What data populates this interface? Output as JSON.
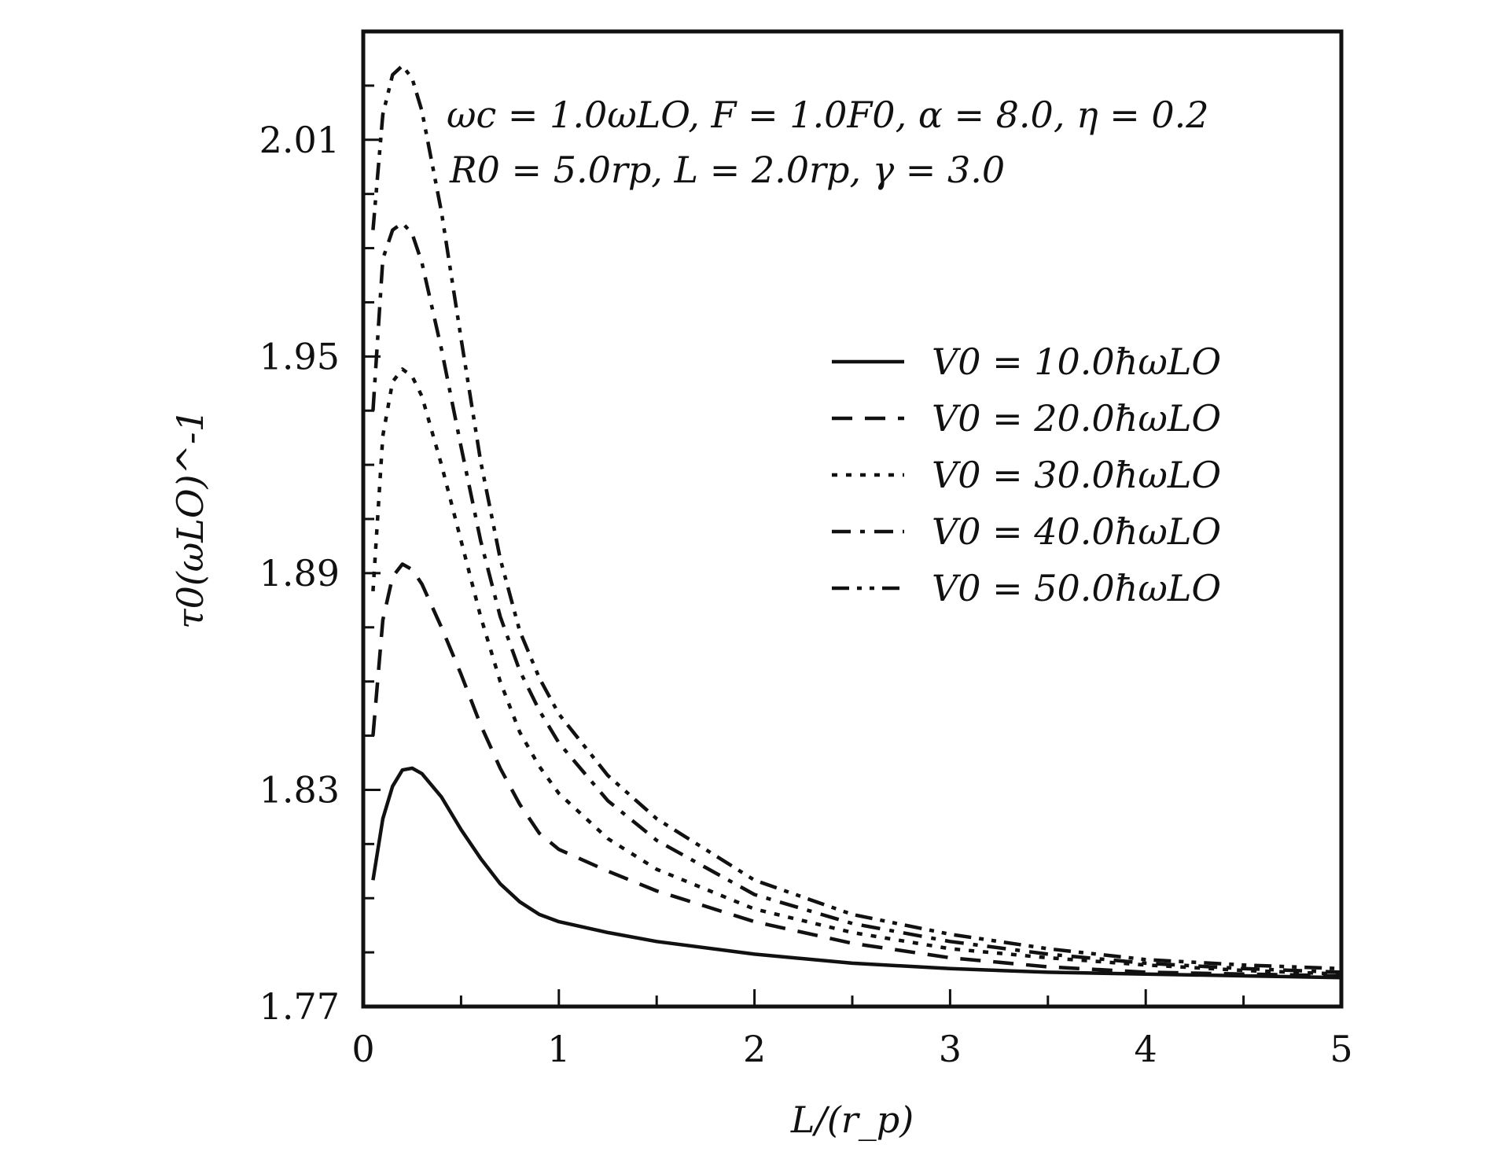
{
  "chart_data": {
    "type": "line",
    "xlabel": "L/(r_p)",
    "ylabel": "τ0(ωLO)^-1",
    "xlim": [
      0,
      5
    ],
    "ylim": [
      1.77,
      2.04
    ],
    "x_ticks": [
      0,
      1,
      2,
      3,
      4,
      5
    ],
    "x_tick_labels": [
      "0",
      "1",
      "2",
      "3",
      "4",
      "5"
    ],
    "y_ticks": [
      1.77,
      1.83,
      1.89,
      1.95,
      2.01
    ],
    "y_tick_labels": [
      "1.77",
      "1.83",
      "1.89",
      "1.95",
      "2.01"
    ],
    "annotations": [
      "ωc = 1.0ωLO,  F = 1.0F0,  α = 8.0,  η = 0.2",
      "R0 = 5.0rp,  L = 2.0rp,  γ = 3.0"
    ],
    "legend_position": "right",
    "grid": false,
    "series": [
      {
        "name": "V0 = 10.0ħωLO",
        "dash": "solid",
        "x": [
          0.05,
          0.1,
          0.15,
          0.2,
          0.25,
          0.3,
          0.4,
          0.5,
          0.6,
          0.7,
          0.8,
          0.9,
          1.0,
          1.25,
          1.5,
          2.0,
          2.5,
          3.0,
          3.5,
          4.0,
          4.5,
          5.0
        ],
        "y": [
          1.805,
          1.822,
          1.831,
          1.8355,
          1.836,
          1.8345,
          1.828,
          1.819,
          1.811,
          1.804,
          1.799,
          1.7955,
          1.7935,
          1.7905,
          1.788,
          1.7845,
          1.782,
          1.7805,
          1.7795,
          1.779,
          1.7785,
          1.778
        ]
      },
      {
        "name": "V0 = 20.0ħωLO",
        "dash": "dashed",
        "x": [
          0.05,
          0.1,
          0.15,
          0.2,
          0.25,
          0.3,
          0.4,
          0.5,
          0.6,
          0.7,
          0.8,
          0.9,
          1.0,
          1.25,
          1.5,
          2.0,
          2.5,
          3.0,
          3.5,
          4.0,
          4.5,
          5.0
        ],
        "y": [
          1.845,
          1.877,
          1.889,
          1.8925,
          1.891,
          1.887,
          1.875,
          1.862,
          1.848,
          1.836,
          1.826,
          1.818,
          1.8135,
          1.8075,
          1.802,
          1.7935,
          1.7875,
          1.7835,
          1.781,
          1.7795,
          1.779,
          1.7785
        ]
      },
      {
        "name": "V0 = 30.0ħωLO",
        "dash": "dotted",
        "x": [
          0.05,
          0.1,
          0.15,
          0.2,
          0.25,
          0.3,
          0.4,
          0.5,
          0.6,
          0.7,
          0.8,
          0.9,
          1.0,
          1.25,
          1.5,
          2.0,
          2.5,
          3.0,
          3.5,
          4.0,
          4.5,
          5.0
        ],
        "y": [
          1.885,
          1.928,
          1.943,
          1.9465,
          1.9445,
          1.939,
          1.92,
          1.899,
          1.878,
          1.86,
          1.846,
          1.8365,
          1.829,
          1.8165,
          1.808,
          1.797,
          1.7905,
          1.786,
          1.7835,
          1.7815,
          1.78,
          1.779
        ]
      },
      {
        "name": "V0 = 40.0ħωLO",
        "dash": "dashdot",
        "x": [
          0.05,
          0.1,
          0.15,
          0.2,
          0.25,
          0.3,
          0.4,
          0.5,
          0.6,
          0.7,
          0.8,
          0.9,
          1.0,
          1.25,
          1.5,
          2.0,
          2.5,
          3.0,
          3.5,
          4.0,
          4.5,
          5.0
        ],
        "y": [
          1.935,
          1.977,
          1.985,
          1.987,
          1.984,
          1.976,
          1.952,
          1.925,
          1.899,
          1.878,
          1.863,
          1.852,
          1.843,
          1.827,
          1.816,
          1.801,
          1.793,
          1.788,
          1.7845,
          1.782,
          1.7805,
          1.7795
        ]
      },
      {
        "name": "V0 = 50.0ħωLO",
        "dash": "dashdotdot",
        "x": [
          0.05,
          0.1,
          0.15,
          0.2,
          0.25,
          0.3,
          0.4,
          0.5,
          0.6,
          0.7,
          0.8,
          0.9,
          1.0,
          1.25,
          1.5,
          2.0,
          2.5,
          3.0,
          3.5,
          4.0,
          4.5,
          5.0
        ],
        "y": [
          1.985,
          2.017,
          2.028,
          2.0305,
          2.027,
          2.018,
          1.99,
          1.955,
          1.921,
          1.894,
          1.874,
          1.861,
          1.851,
          1.834,
          1.822,
          1.805,
          1.7955,
          1.79,
          1.786,
          1.783,
          1.7815,
          1.7805
        ]
      }
    ]
  }
}
